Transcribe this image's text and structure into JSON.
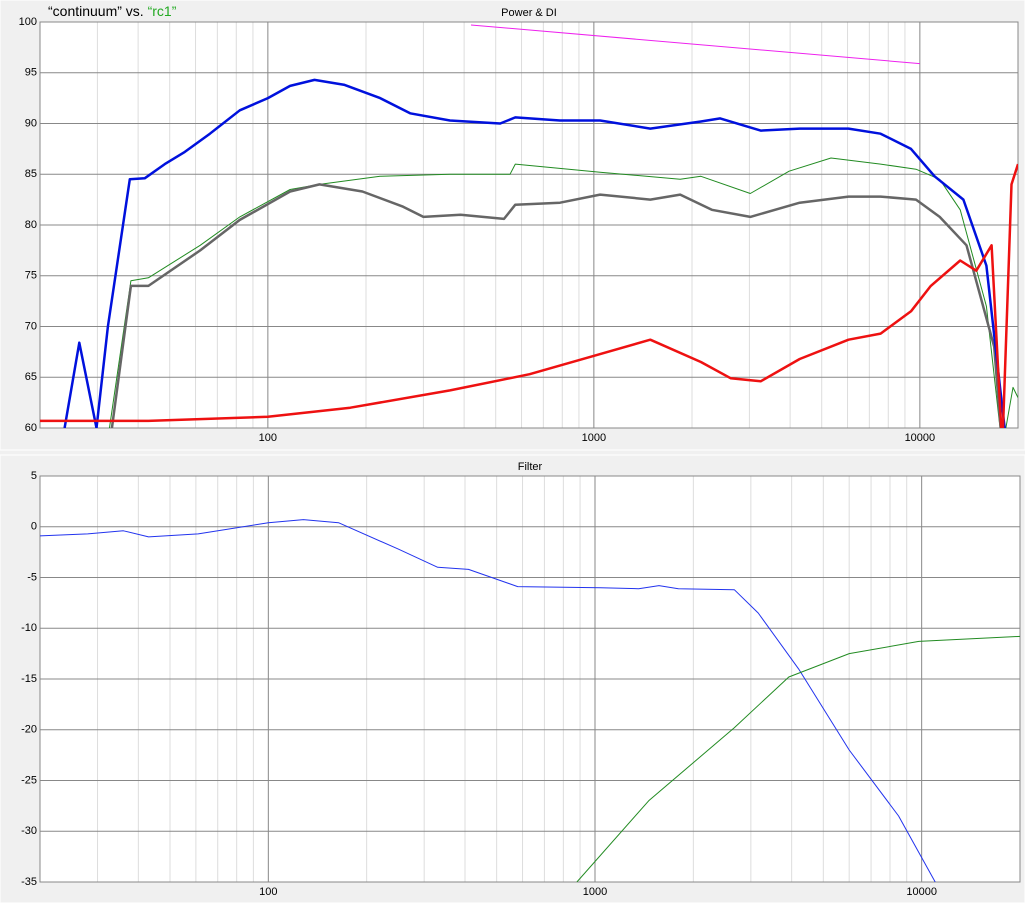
{
  "chart_data": [
    {
      "type": "line",
      "title": "Power & DI",
      "heading_parts": [
        {
          "text": "“continuum” vs. ",
          "color": "#000000"
        },
        {
          "text": "“rc1”",
          "color": "#22aa22"
        }
      ],
      "log_x": true,
      "xlim": [
        20,
        20000
      ],
      "xticks": [
        100,
        1000,
        10000
      ],
      "xminor": [
        20,
        30,
        40,
        50,
        60,
        70,
        80,
        90,
        200,
        300,
        400,
        500,
        600,
        700,
        800,
        900,
        2000,
        3000,
        4000,
        5000,
        6000,
        7000,
        8000,
        9000
      ],
      "ylim": [
        60,
        100
      ],
      "yticks": [
        60,
        65,
        70,
        75,
        80,
        85,
        90,
        95,
        100
      ],
      "grid": true,
      "series": [
        {
          "color": "#ee22ee",
          "width": 1,
          "x": [
            420,
            10000
          ],
          "values": [
            99.7,
            95.9
          ]
        },
        {
          "color": "#228b22",
          "width": 1,
          "x": [
            32,
            38,
            43,
            62,
            82,
            117,
            144,
            221,
            362,
            553,
            574,
            1045,
            1840,
            2130,
            3020,
            3970,
            5340,
            7580,
            9730,
            11500,
            13300,
            16000,
            17900,
            19300,
            20000
          ],
          "values": [
            58,
            74.5,
            74.8,
            78,
            80.8,
            83.5,
            84,
            84.8,
            85,
            85,
            86,
            85.2,
            84.5,
            84.8,
            83.1,
            85.3,
            86.6,
            86,
            85.5,
            84.5,
            81.5,
            72,
            58,
            64,
            63
          ]
        },
        {
          "color": "#666666",
          "width": 2.5,
          "x": [
            32,
            38,
            43,
            62,
            82,
            117,
            144,
            195,
            260,
            300,
            390,
            530,
            574,
            787,
            1045,
            1490,
            1840,
            2300,
            3020,
            4280,
            6040,
            7580,
            9730,
            11500,
            13900,
            16900,
            17900
          ],
          "values": [
            56,
            74,
            74,
            77.5,
            80.5,
            83.3,
            84,
            83.3,
            81.8,
            80.8,
            81,
            80.6,
            82,
            82.2,
            83,
            82.5,
            83,
            81.5,
            80.8,
            82.2,
            82.8,
            82.8,
            82.5,
            80.8,
            78,
            68,
            58
          ]
        },
        {
          "color": "#0011dd",
          "width": 2.5,
          "x": [
            23.8,
            26.4,
            29.8,
            32.3,
            37.7,
            41.9,
            48.3,
            55.6,
            66.4,
            82,
            100,
            117,
            139,
            172,
            221,
            273,
            362,
            516,
            574,
            787,
            1045,
            1490,
            2130,
            2440,
            3250,
            4280,
            6040,
            7580,
            9390,
            11100,
            13600,
            16000,
            17900,
            18500
          ],
          "values": [
            60,
            68.4,
            60,
            70,
            84.5,
            84.6,
            86,
            87.2,
            89,
            91.3,
            92.5,
            93.7,
            94.3,
            93.8,
            92.5,
            91,
            90.3,
            90,
            90.6,
            90.3,
            90.3,
            89.5,
            90.2,
            90.5,
            89.3,
            89.5,
            89.5,
            89,
            87.5,
            84.8,
            82.5,
            76,
            62,
            58
          ]
        },
        {
          "color": "#ee1111",
          "width": 2.5,
          "x": [
            20,
            43,
            100,
            179,
            362,
            635,
            974,
            1490,
            2130,
            2630,
            3250,
            4280,
            6040,
            7580,
            9390,
            10800,
            13300,
            14900,
            16600,
            17900,
            19100,
            20000
          ],
          "values": [
            60.7,
            60.7,
            61.1,
            62,
            63.7,
            65.3,
            67,
            68.7,
            66.5,
            64.9,
            64.6,
            66.8,
            68.7,
            69.3,
            71.5,
            74,
            76.5,
            75.5,
            78,
            58,
            84,
            86
          ]
        }
      ]
    },
    {
      "type": "line",
      "title": "Filter",
      "log_x": true,
      "xlim": [
        20,
        20000
      ],
      "xticks": [
        100,
        1000,
        10000
      ],
      "xminor": [
        20,
        30,
        40,
        50,
        60,
        70,
        80,
        90,
        200,
        300,
        400,
        500,
        600,
        700,
        800,
        900,
        2000,
        3000,
        4000,
        5000,
        6000,
        7000,
        8000,
        9000
      ],
      "ylim": [
        -35,
        5
      ],
      "yticks": [
        -35,
        -30,
        -25,
        -20,
        -15,
        -10,
        -5,
        0,
        5
      ],
      "grid": true,
      "series": [
        {
          "color": "#2233ee",
          "width": 1,
          "x": [
            20,
            28,
            36,
            43,
            61,
            100,
            128,
            164,
            250,
            330,
            410,
            580,
            1040,
            1360,
            1570,
            1800,
            2670,
            3160,
            4200,
            6000,
            8500,
            11000
          ],
          "values": [
            -0.9,
            -0.7,
            -0.4,
            -1,
            -0.7,
            0.4,
            0.7,
            0.4,
            -2.2,
            -4,
            -4.2,
            -5.9,
            -6,
            -6.1,
            -5.8,
            -6.1,
            -6.2,
            -8.5,
            -14,
            -22,
            -28.5,
            -35
          ]
        },
        {
          "color": "#228b22",
          "width": 1,
          "x": [
            880,
            1460,
            2670,
            3920,
            6000,
            9800,
            20000
          ],
          "values": [
            -35,
            -27,
            -19.8,
            -14.8,
            -12.5,
            -11.3,
            -10.8
          ]
        }
      ]
    }
  ]
}
